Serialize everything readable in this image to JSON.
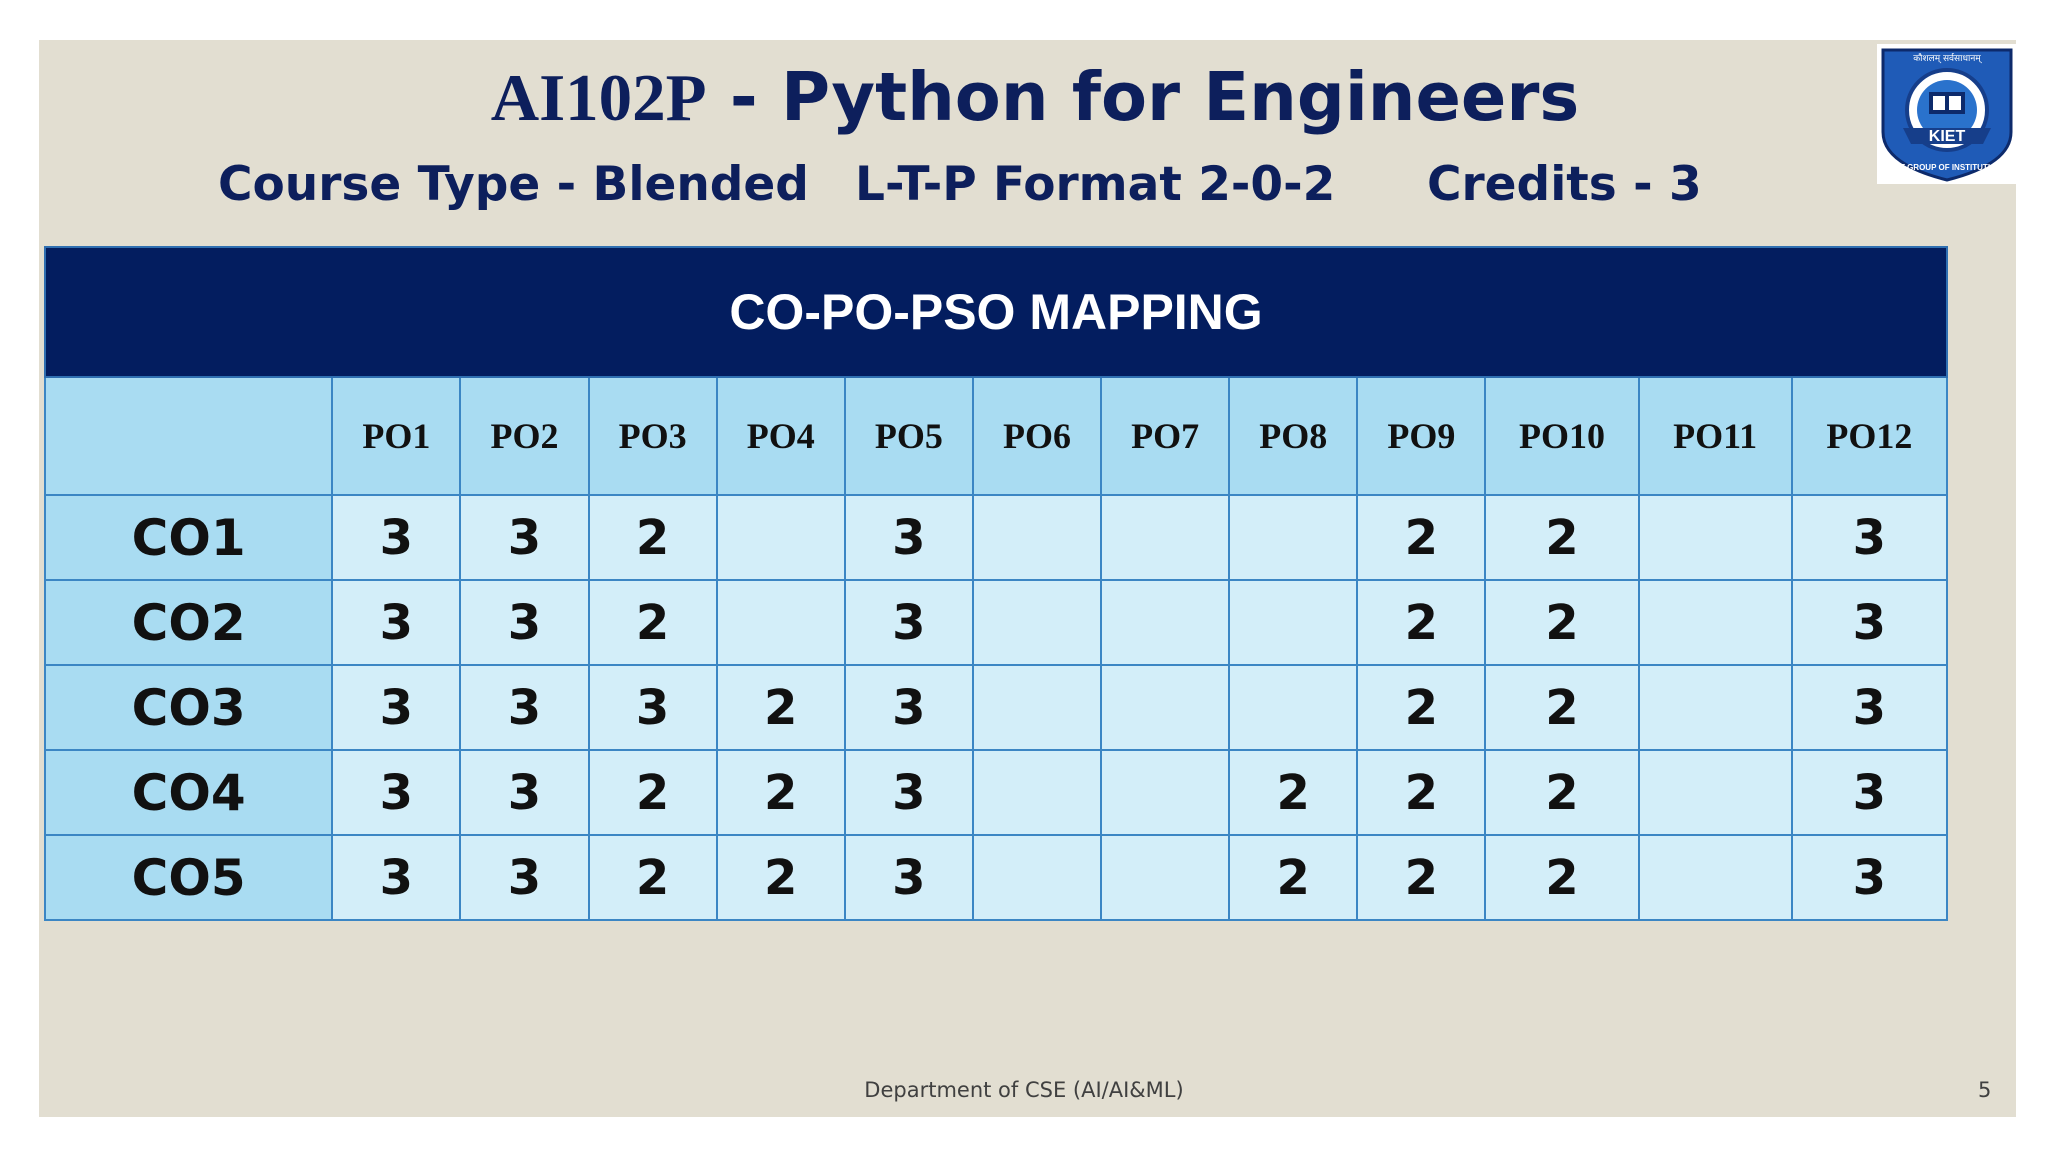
{
  "header": {
    "title_code": "AI102P",
    "title_rest": " - Python for Engineers",
    "course_type": "Course Type - Blended",
    "ltp_format": "L-T-P Format 2-0-2",
    "credits": "Credits - 3"
  },
  "logo": {
    "motto": "कौशलम् सर्वसाधानम्",
    "text_outer": "KIET GROUP OF INSTITUTIONS",
    "text_center": "KIET",
    "colors": {
      "shield": "#1f5bb7",
      "ribbon": "#163e8a",
      "inner": "#ffffff",
      "accent": "#0d2a6b"
    }
  },
  "table": {
    "title": "CO-PO-PSO MAPPING",
    "columns": [
      "PO1",
      "PO2",
      "PO3",
      "PO4",
      "PO5",
      "PO6",
      "PO7",
      "PO8",
      "PO9",
      "PO10",
      "PO11",
      "PO12"
    ],
    "rows": [
      {
        "label": "CO1",
        "values": [
          "3",
          "3",
          "2",
          "",
          "3",
          "",
          "",
          "",
          "2",
          "2",
          "",
          "3"
        ]
      },
      {
        "label": "CO2",
        "values": [
          "3",
          "3",
          "2",
          "",
          "3",
          "",
          "",
          "",
          "2",
          "2",
          "",
          "3"
        ]
      },
      {
        "label": "CO3",
        "values": [
          "3",
          "3",
          "3",
          "2",
          "3",
          "",
          "",
          "",
          "2",
          "2",
          "",
          "3"
        ]
      },
      {
        "label": "CO4",
        "values": [
          "3",
          "3",
          "2",
          "2",
          "3",
          "",
          "",
          "2",
          "2",
          "2",
          "",
          "3"
        ]
      },
      {
        "label": "CO5",
        "values": [
          "3",
          "3",
          "2",
          "2",
          "3",
          "",
          "",
          "2",
          "2",
          "2",
          "",
          "3"
        ]
      }
    ]
  },
  "footer": {
    "department": "Department of CSE (AI/AI&ML)",
    "page_number": "5"
  },
  "colors": {
    "background": "#e2ded1",
    "title_text": "#0d1f5c",
    "table_header": "#031d5f",
    "column_header": "#a9dcf2",
    "cell": "#d3eef9",
    "border": "#3b86c4"
  }
}
